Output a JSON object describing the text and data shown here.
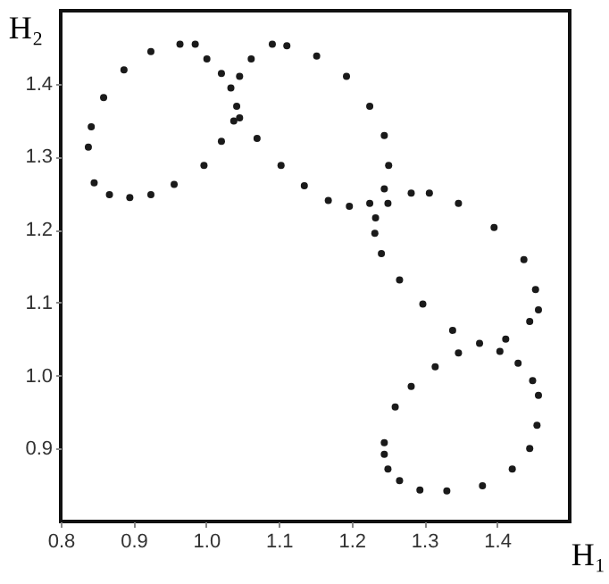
{
  "chart_data": {
    "type": "scatter",
    "xlabel": "H₁",
    "ylabel": "H₂",
    "marker": "circle",
    "xlim": [
      0.8,
      1.5
    ],
    "ylim": [
      0.8,
      1.5
    ],
    "xticks": [
      0.8,
      0.9,
      {
        "value": 1,
        "label": "1.0"
      },
      1.1,
      1.2,
      1.3,
      1.4
    ],
    "yticks": [
      0.9,
      {
        "value": 1,
        "label": "1.0"
      },
      1.1,
      1.2,
      1.3,
      1.4
    ],
    "series": [
      {
        "color": "#1a1a1a",
        "x": [
          0.838,
          0.842,
          0.859,
          0.887,
          0.924,
          0.964,
          0.985,
          1.001,
          1.021,
          1.034,
          1.042,
          1.038,
          1.021,
          0.997,
          0.956,
          0.924,
          0.895,
          0.867,
          0.846
        ],
        "values": [
          1.313,
          1.341,
          1.381,
          1.419,
          1.444,
          1.454,
          1.454,
          1.434,
          1.414,
          1.394,
          1.369,
          1.349,
          1.321,
          1.288,
          1.262,
          1.248,
          1.244,
          1.248,
          1.264
        ]
      },
      {
        "color": "#1a1a1a",
        "x": [
          1.046,
          1.062,
          1.091,
          1.111,
          1.152,
          1.193,
          1.225,
          1.245,
          1.251,
          1.245,
          1.225,
          1.197,
          1.168,
          1.135,
          1.103,
          1.07,
          1.046
        ],
        "values": [
          1.41,
          1.434,
          1.454,
          1.452,
          1.438,
          1.41,
          1.369,
          1.329,
          1.288,
          1.256,
          1.236,
          1.232,
          1.24,
          1.26,
          1.288,
          1.325,
          1.353
        ]
      },
      {
        "color": "#1a1a1a",
        "x": [
          1.233,
          1.25,
          1.282,
          1.307,
          1.347,
          1.396,
          1.437,
          1.453,
          1.457,
          1.445,
          1.412,
          1.376,
          1.339,
          1.298,
          1.266,
          1.241,
          1.232
        ],
        "values": [
          1.216,
          1.236,
          1.25,
          1.25,
          1.236,
          1.203,
          1.159,
          1.118,
          1.09,
          1.074,
          1.05,
          1.044,
          1.062,
          1.098,
          1.131,
          1.167,
          1.195
        ]
      },
      {
        "color": "#1a1a1a",
        "x": [
          1.26,
          1.282,
          1.315,
          1.347,
          1.404,
          1.429,
          1.449,
          1.457,
          1.455,
          1.445,
          1.421,
          1.38,
          1.331,
          1.294,
          1.266,
          1.25,
          1.245,
          1.245
        ],
        "values": [
          0.957,
          0.985,
          1.012,
          1.031,
          1.033,
          1.017,
          0.993,
          0.973,
          0.932,
          0.9,
          0.872,
          0.849,
          0.842,
          0.843,
          0.856,
          0.872,
          0.892,
          0.908
        ]
      }
    ]
  }
}
